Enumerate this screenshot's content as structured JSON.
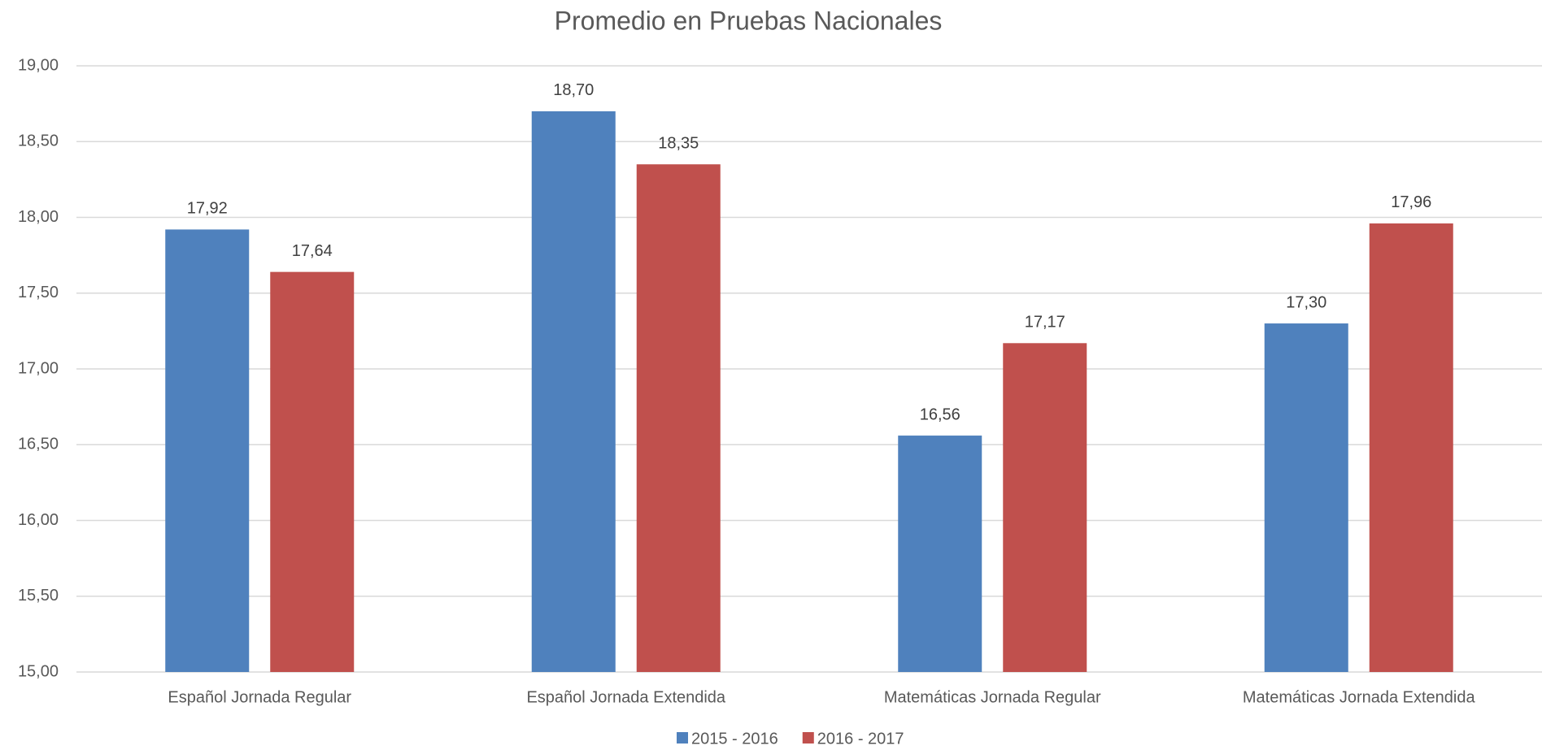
{
  "chart_data": {
    "type": "bar",
    "title": "Promedio en Pruebas Nacionales",
    "categories": [
      "Español Jornada Regular",
      "Español Jornada Extendida",
      "Matemáticas Jornada Regular",
      "Matemáticas Jornada Extendida"
    ],
    "series": [
      {
        "name": "2015 - 2016",
        "color": "#4f81bd",
        "values": [
          17.92,
          18.7,
          16.56,
          17.3
        ],
        "value_labels": [
          "17,92",
          "18,70",
          "16,56",
          "17,30"
        ]
      },
      {
        "name": "2016 - 2017",
        "color": "#c0504d",
        "values": [
          17.64,
          18.35,
          17.17,
          17.96
        ],
        "value_labels": [
          "17,64",
          "18,35",
          "17,17",
          "17,96"
        ]
      }
    ],
    "ylim": [
      15,
      19
    ],
    "yticks": [
      {
        "value": 15,
        "label": "15,00"
      },
      {
        "value": 15.5,
        "label": "15,50"
      },
      {
        "value": 16,
        "label": "16,00"
      },
      {
        "value": 16.5,
        "label": "16,50"
      },
      {
        "value": 17,
        "label": "17,00"
      },
      {
        "value": 17.5,
        "label": "17,50"
      },
      {
        "value": 18,
        "label": "18,00"
      },
      {
        "value": 18.5,
        "label": "18,50"
      },
      {
        "value": 19,
        "label": "19,00"
      }
    ],
    "grid": true,
    "legend": "bottom"
  }
}
